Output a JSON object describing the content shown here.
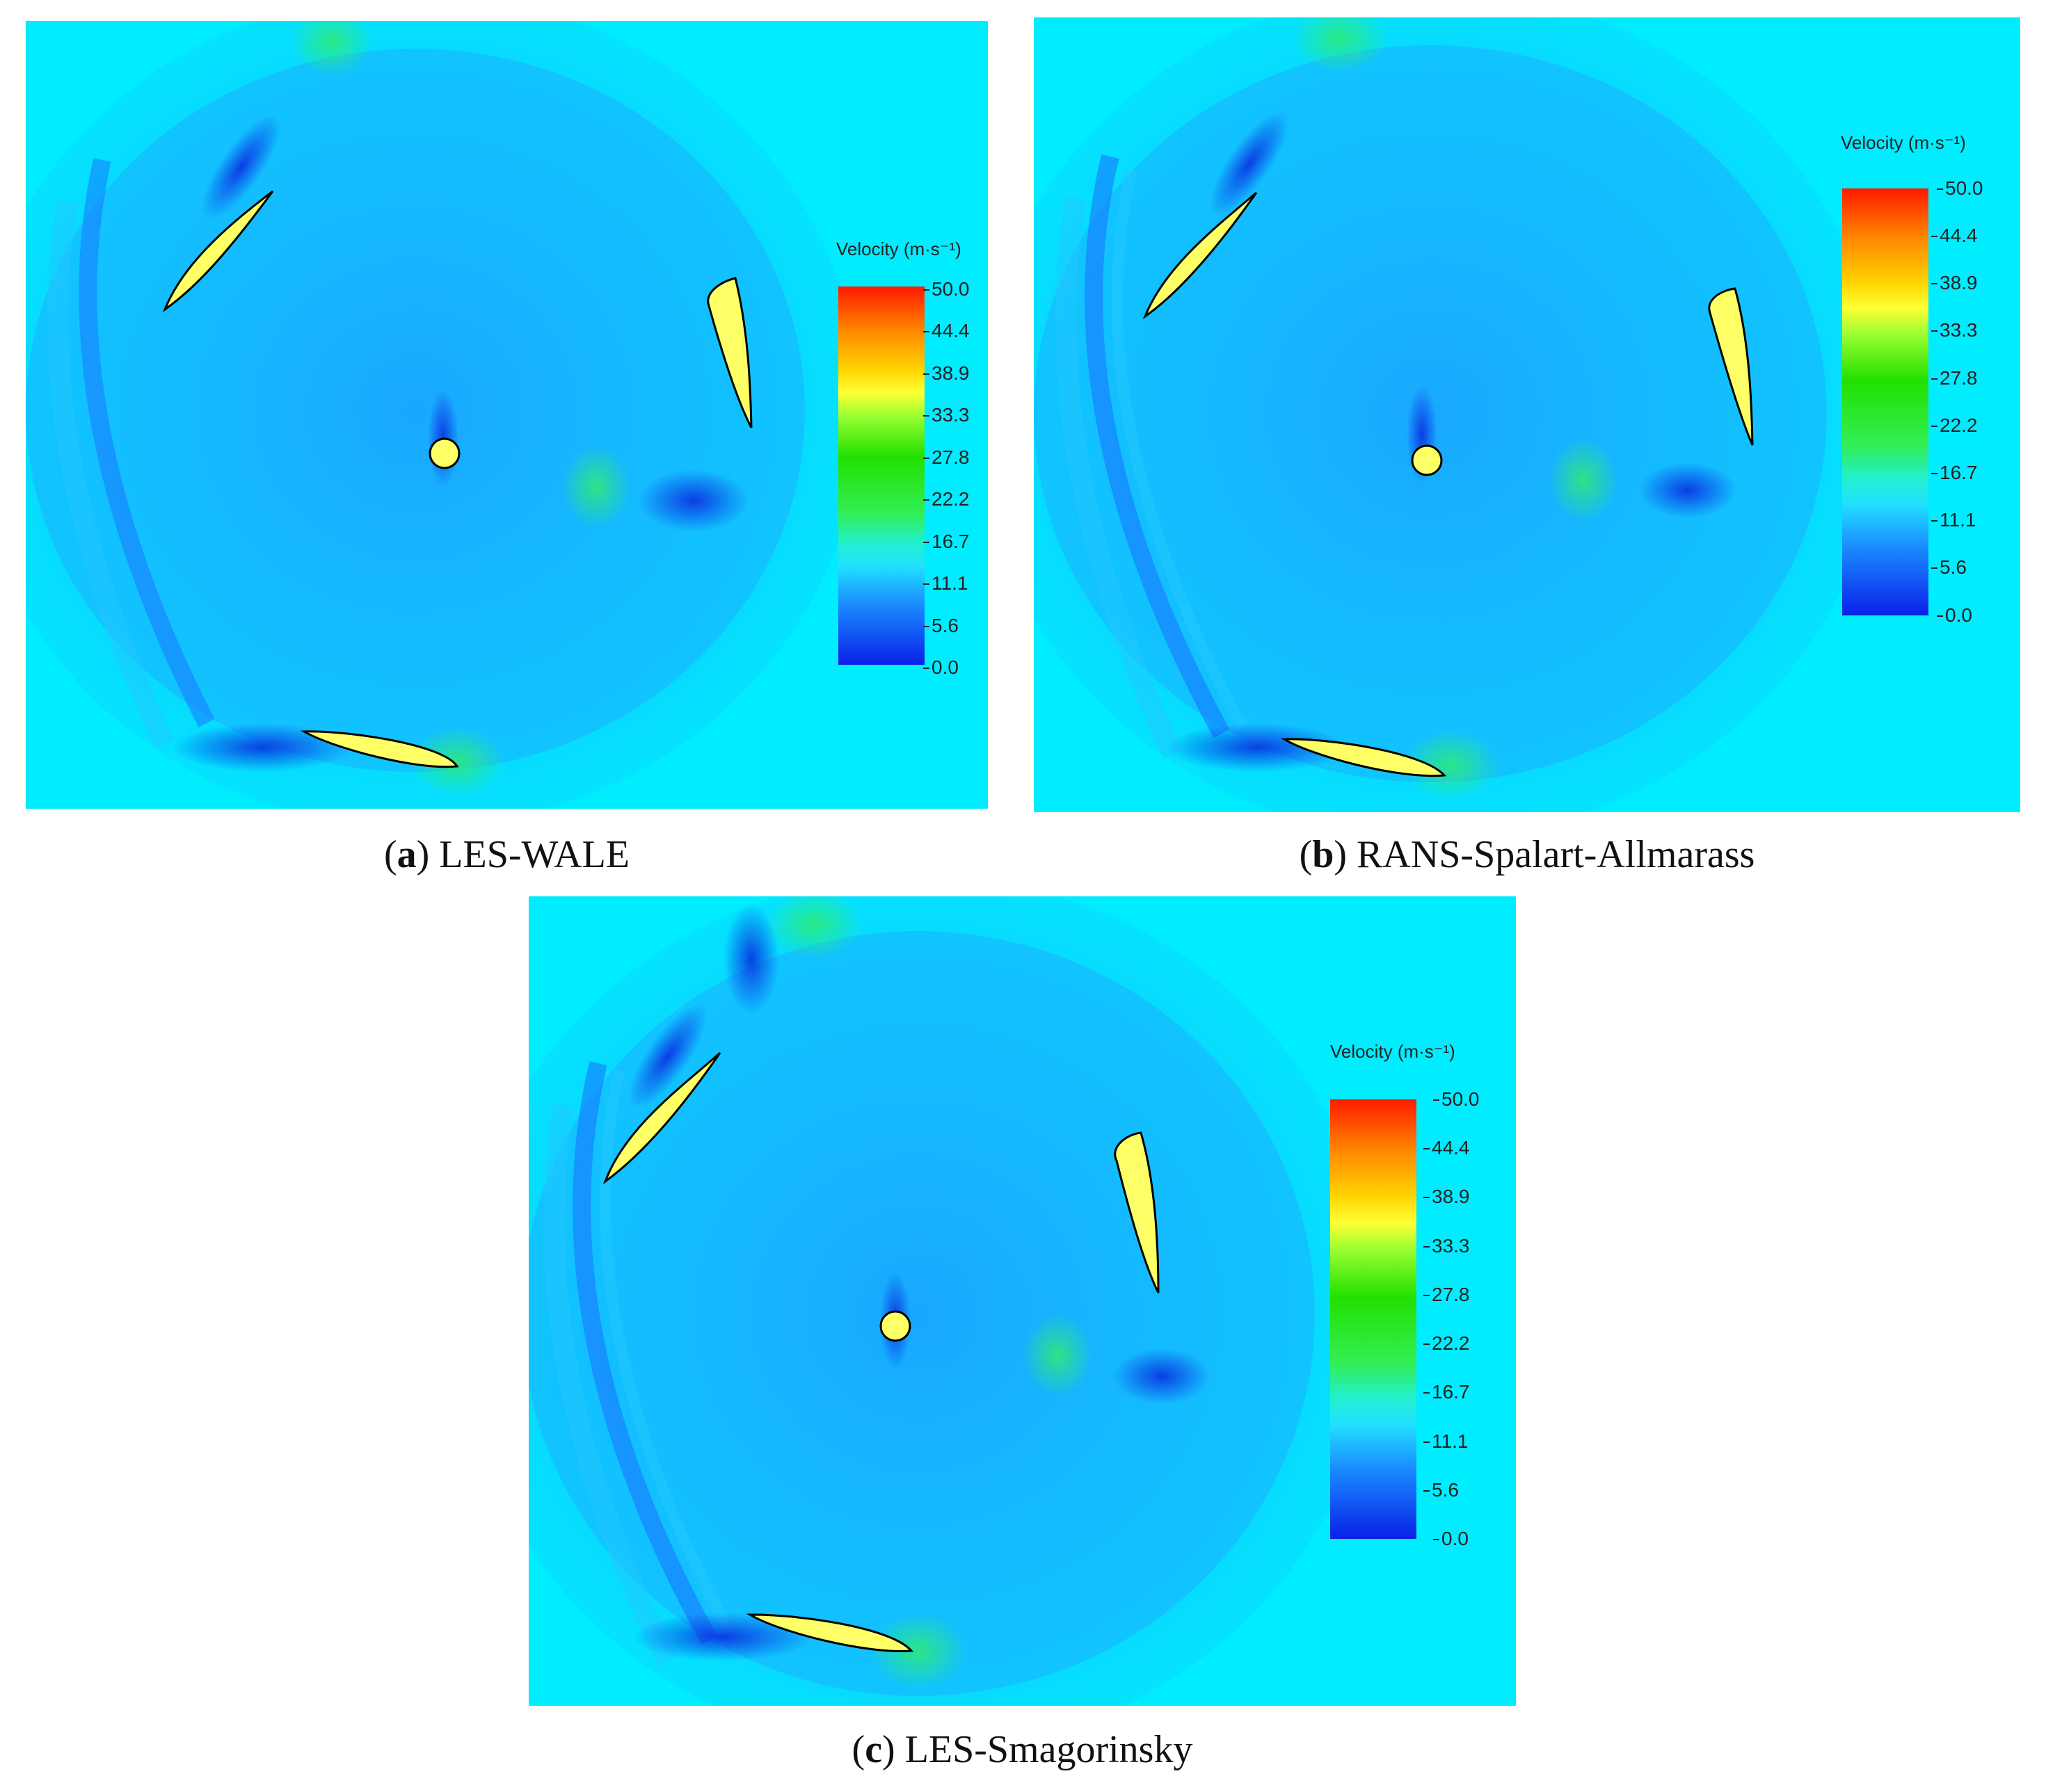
{
  "legend": {
    "title": "Velocity (m·s⁻¹)",
    "ticks": [
      "50.0",
      "44.4",
      "38.9",
      "33.3",
      "27.8",
      "22.2",
      "16.7",
      "11.1",
      "5.6",
      "0.0"
    ]
  },
  "panels": [
    {
      "letter": "a",
      "model": "LES-WALE"
    },
    {
      "letter": "b",
      "model": "RANS-Spalart-Allmarass"
    },
    {
      "letter": "c",
      "model": "LES-Smagorinsky"
    }
  ],
  "colors": {
    "background_cyan": "#00f0ff",
    "field_blue": "#1ab0ff",
    "low_velocity": "#0a30e0",
    "high_velocity": "#33ee66",
    "blade_fill": "#ffff66",
    "blade_outline": "#000000"
  }
}
